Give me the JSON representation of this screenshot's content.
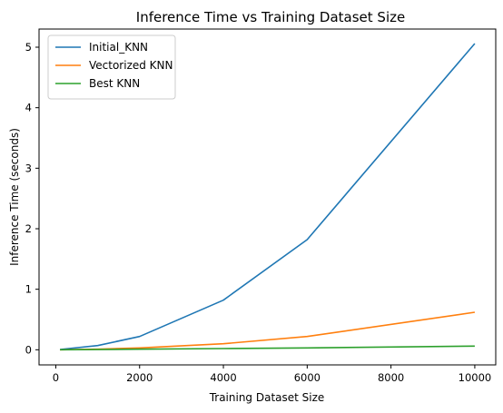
{
  "chart_data": {
    "type": "line",
    "title": "Inference Time vs Training Dataset Size",
    "xlabel": "Training Dataset Size",
    "ylabel": "Inference Time (seconds)",
    "xlim": [
      -400,
      10500
    ],
    "ylim": [
      -0.25,
      5.3
    ],
    "xticks": [
      0,
      2000,
      4000,
      6000,
      8000,
      10000
    ],
    "yticks": [
      0,
      1,
      2,
      3,
      4,
      5
    ],
    "grid": false,
    "legend_position": "top-left",
    "x": [
      100,
      1000,
      2000,
      4000,
      6000,
      10000
    ],
    "series": [
      {
        "name": "Initial_KNN",
        "color": "#1f77b4",
        "values": [
          0.005,
          0.07,
          0.22,
          0.82,
          1.82,
          5.06
        ]
      },
      {
        "name": "Vectorized KNN",
        "color": "#ff7f0e",
        "values": [
          0.001,
          0.01,
          0.03,
          0.1,
          0.22,
          0.62
        ]
      },
      {
        "name": "Best KNN",
        "color": "#2ca02c",
        "values": [
          0.0005,
          0.003,
          0.01,
          0.02,
          0.03,
          0.06
        ]
      }
    ]
  }
}
